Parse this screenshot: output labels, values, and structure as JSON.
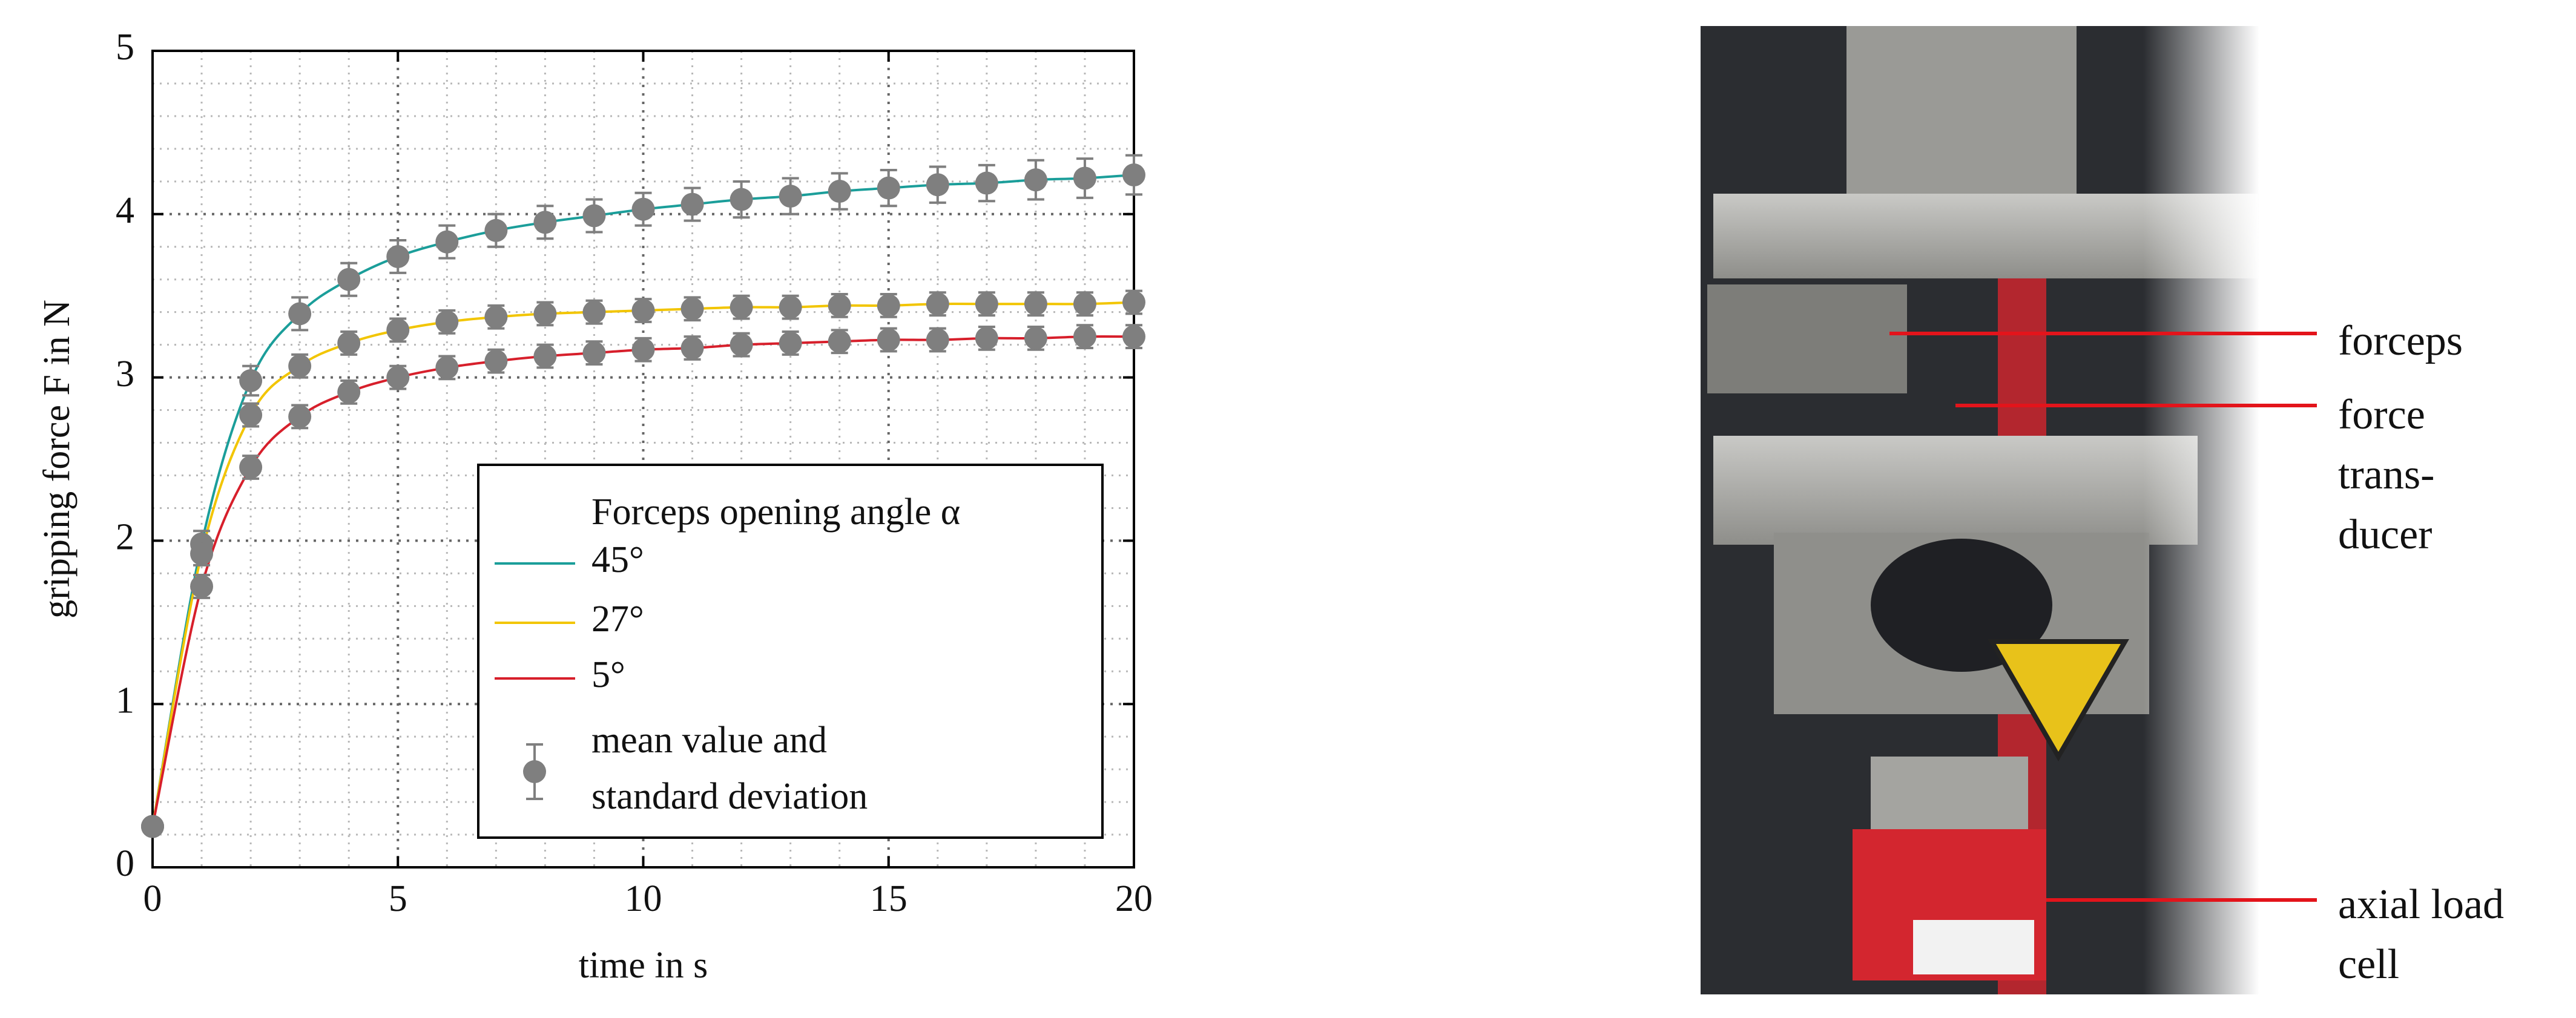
{
  "chart_data": {
    "type": "line",
    "x_label": "time in s",
    "y_label": "gripping force F in N",
    "x": [
      0,
      1,
      2,
      3,
      4,
      5,
      6,
      7,
      8,
      9,
      10,
      11,
      12,
      13,
      14,
      15,
      16,
      17,
      18,
      19,
      20
    ],
    "series": [
      {
        "name": "45°",
        "color": "#1b9e9a",
        "values": [
          0.25,
          1.98,
          2.98,
          3.39,
          3.6,
          3.74,
          3.83,
          3.9,
          3.95,
          3.99,
          4.03,
          4.06,
          4.09,
          4.11,
          4.14,
          4.16,
          4.18,
          4.19,
          4.21,
          4.22,
          4.24
        ],
        "errors": [
          0.03,
          0.08,
          0.09,
          0.1,
          0.1,
          0.1,
          0.1,
          0.1,
          0.1,
          0.1,
          0.1,
          0.1,
          0.11,
          0.11,
          0.11,
          0.11,
          0.11,
          0.11,
          0.12,
          0.12,
          0.12
        ]
      },
      {
        "name": "27°",
        "color": "#f2c500",
        "values": [
          0.25,
          1.92,
          2.77,
          3.07,
          3.21,
          3.29,
          3.34,
          3.37,
          3.39,
          3.4,
          3.41,
          3.42,
          3.43,
          3.43,
          3.44,
          3.44,
          3.45,
          3.45,
          3.45,
          3.45,
          3.46
        ],
        "errors": [
          0.03,
          0.07,
          0.07,
          0.07,
          0.07,
          0.07,
          0.07,
          0.07,
          0.07,
          0.07,
          0.07,
          0.07,
          0.07,
          0.07,
          0.07,
          0.07,
          0.07,
          0.07,
          0.07,
          0.07,
          0.07
        ]
      },
      {
        "name": "5°",
        "color": "#d71f2b",
        "values": [
          0.25,
          1.72,
          2.45,
          2.76,
          2.91,
          3.0,
          3.06,
          3.1,
          3.13,
          3.15,
          3.17,
          3.18,
          3.2,
          3.21,
          3.22,
          3.23,
          3.23,
          3.24,
          3.24,
          3.25,
          3.25
        ],
        "errors": [
          0.03,
          0.07,
          0.07,
          0.07,
          0.07,
          0.07,
          0.07,
          0.07,
          0.07,
          0.07,
          0.07,
          0.07,
          0.07,
          0.07,
          0.07,
          0.07,
          0.07,
          0.07,
          0.07,
          0.07,
          0.07
        ]
      }
    ],
    "marker_color": "#7f7f7f",
    "legend_title": "Forceps opening angle α",
    "marker_legend": [
      "mean value and",
      "standard deviation"
    ],
    "legend": "lower right",
    "xlim": [
      0,
      20
    ],
    "ylim": [
      0,
      5
    ],
    "xticks": [
      0,
      5,
      10,
      15,
      20
    ],
    "yticks": [
      0,
      1,
      2,
      3,
      4,
      5
    ],
    "xminorticks": [
      1,
      2,
      3,
      4,
      6,
      7,
      8,
      9,
      11,
      12,
      13,
      14,
      16,
      17,
      18,
      19
    ],
    "yminorticks": [
      0.2,
      0.4,
      0.6,
      0.8,
      1.2,
      1.4,
      1.6,
      1.8,
      2.2,
      2.4,
      2.6,
      2.8,
      3.2,
      3.4,
      3.6,
      3.8,
      4.2,
      4.4,
      4.6,
      4.8
    ],
    "grid": true
  },
  "photo": {
    "labels": [
      {
        "lines": [
          "forceps"
        ]
      },
      {
        "lines": [
          "force",
          "trans-",
          "ducer"
        ]
      },
      {
        "lines": [
          "axial load",
          "cell"
        ]
      }
    ]
  }
}
